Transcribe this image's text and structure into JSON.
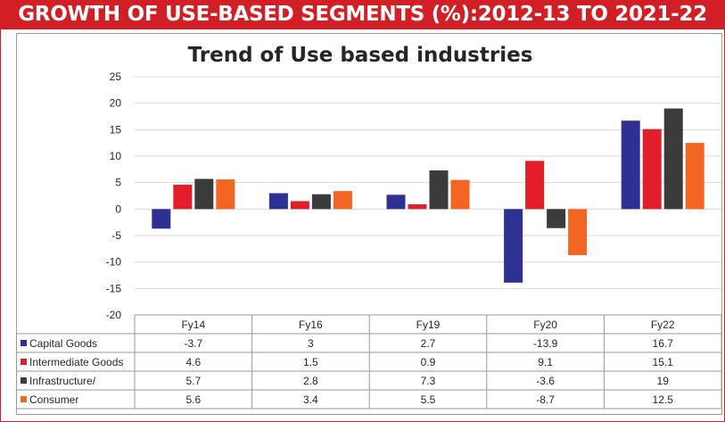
{
  "header": {
    "title": "GROWTH OF USE-BASED SEGMENTS (%):2012-13 TO 2021-22"
  },
  "chart_data": {
    "type": "bar",
    "title": "Trend of Use based industries",
    "categories": [
      "Fy14",
      "Fy16",
      "Fy19",
      "Fy20",
      "Fy22"
    ],
    "series": [
      {
        "name": "Capital Goods",
        "color": "#2e3192",
        "values": [
          -3.7,
          3,
          2.7,
          -13.9,
          16.7
        ]
      },
      {
        "name": "Intermediate Goods",
        "color": "#e21e2b",
        "values": [
          4.6,
          1.5,
          0.9,
          9.1,
          15.1
        ]
      },
      {
        "name": "Infrastructure/",
        "color": "#3b3b3b",
        "values": [
          5.7,
          2.8,
          7.3,
          -3.6,
          19
        ]
      },
      {
        "name": "Consumer",
        "color": "#f26522",
        "values": [
          5.6,
          3.4,
          5.5,
          -8.7,
          12.5
        ]
      }
    ],
    "value_labels": [
      [
        "-3.7",
        "3",
        "2.7",
        "-13.9",
        "16.7"
      ],
      [
        "4.6",
        "1.5",
        "0.9",
        "9.1",
        "15.1"
      ],
      [
        "5.7",
        "2.8",
        "7.3",
        "-3.6",
        "19"
      ],
      [
        "5.6",
        "3.4",
        "5.5",
        "-8.7",
        "12.5"
      ]
    ],
    "ylim": [
      -20,
      25
    ],
    "yticks": [
      -20,
      -15,
      -10,
      -5,
      0,
      5,
      10,
      15,
      20,
      25
    ],
    "grid": true,
    "legend": "data-table-below"
  }
}
